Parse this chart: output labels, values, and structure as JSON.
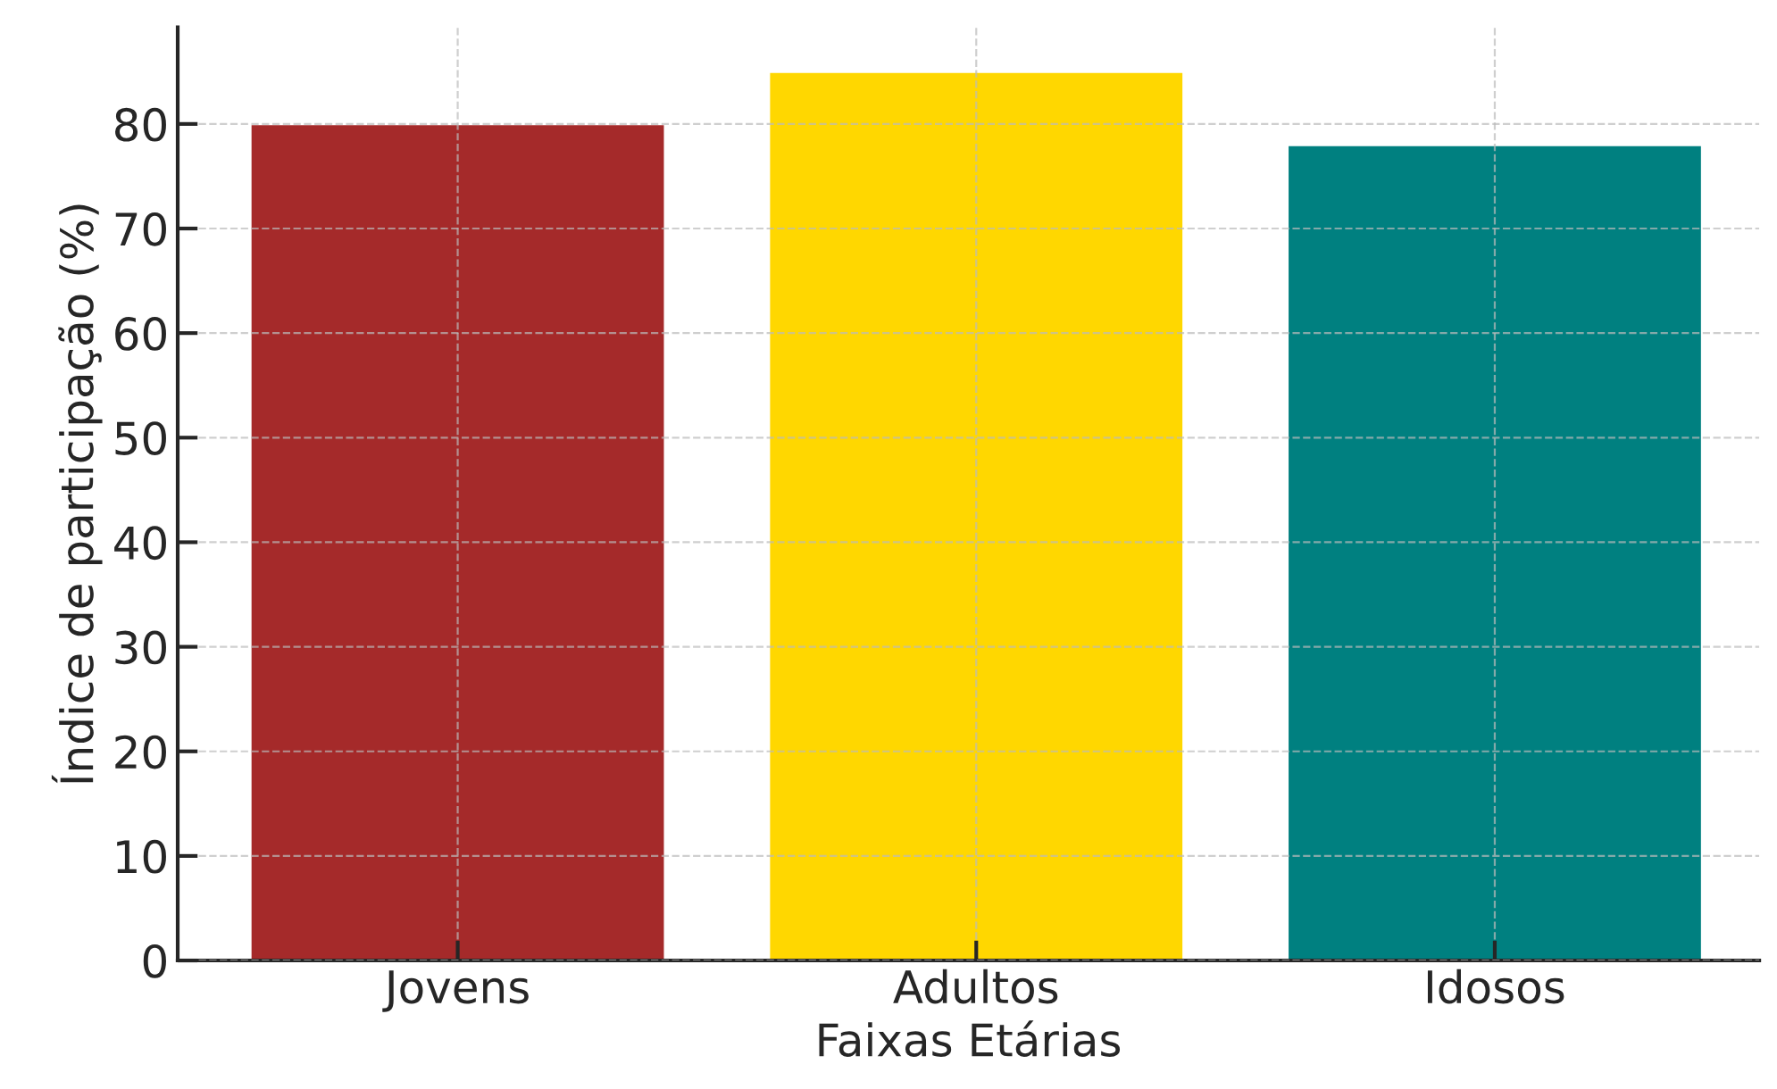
{
  "chart_data": {
    "type": "bar",
    "xlabel": "Faixas Etárias",
    "ylabel": "Índice de participação (%)",
    "categories": [
      "Jovens",
      "Adultos",
      "Idosos"
    ],
    "values": [
      80,
      85,
      78
    ],
    "colors": [
      "#a52a2a",
      "#ffd700",
      "#008080"
    ],
    "ylim": [
      0,
      89.25
    ],
    "yticks": [
      0,
      10,
      20,
      30,
      40,
      50,
      60,
      70,
      80
    ],
    "grid": true
  }
}
